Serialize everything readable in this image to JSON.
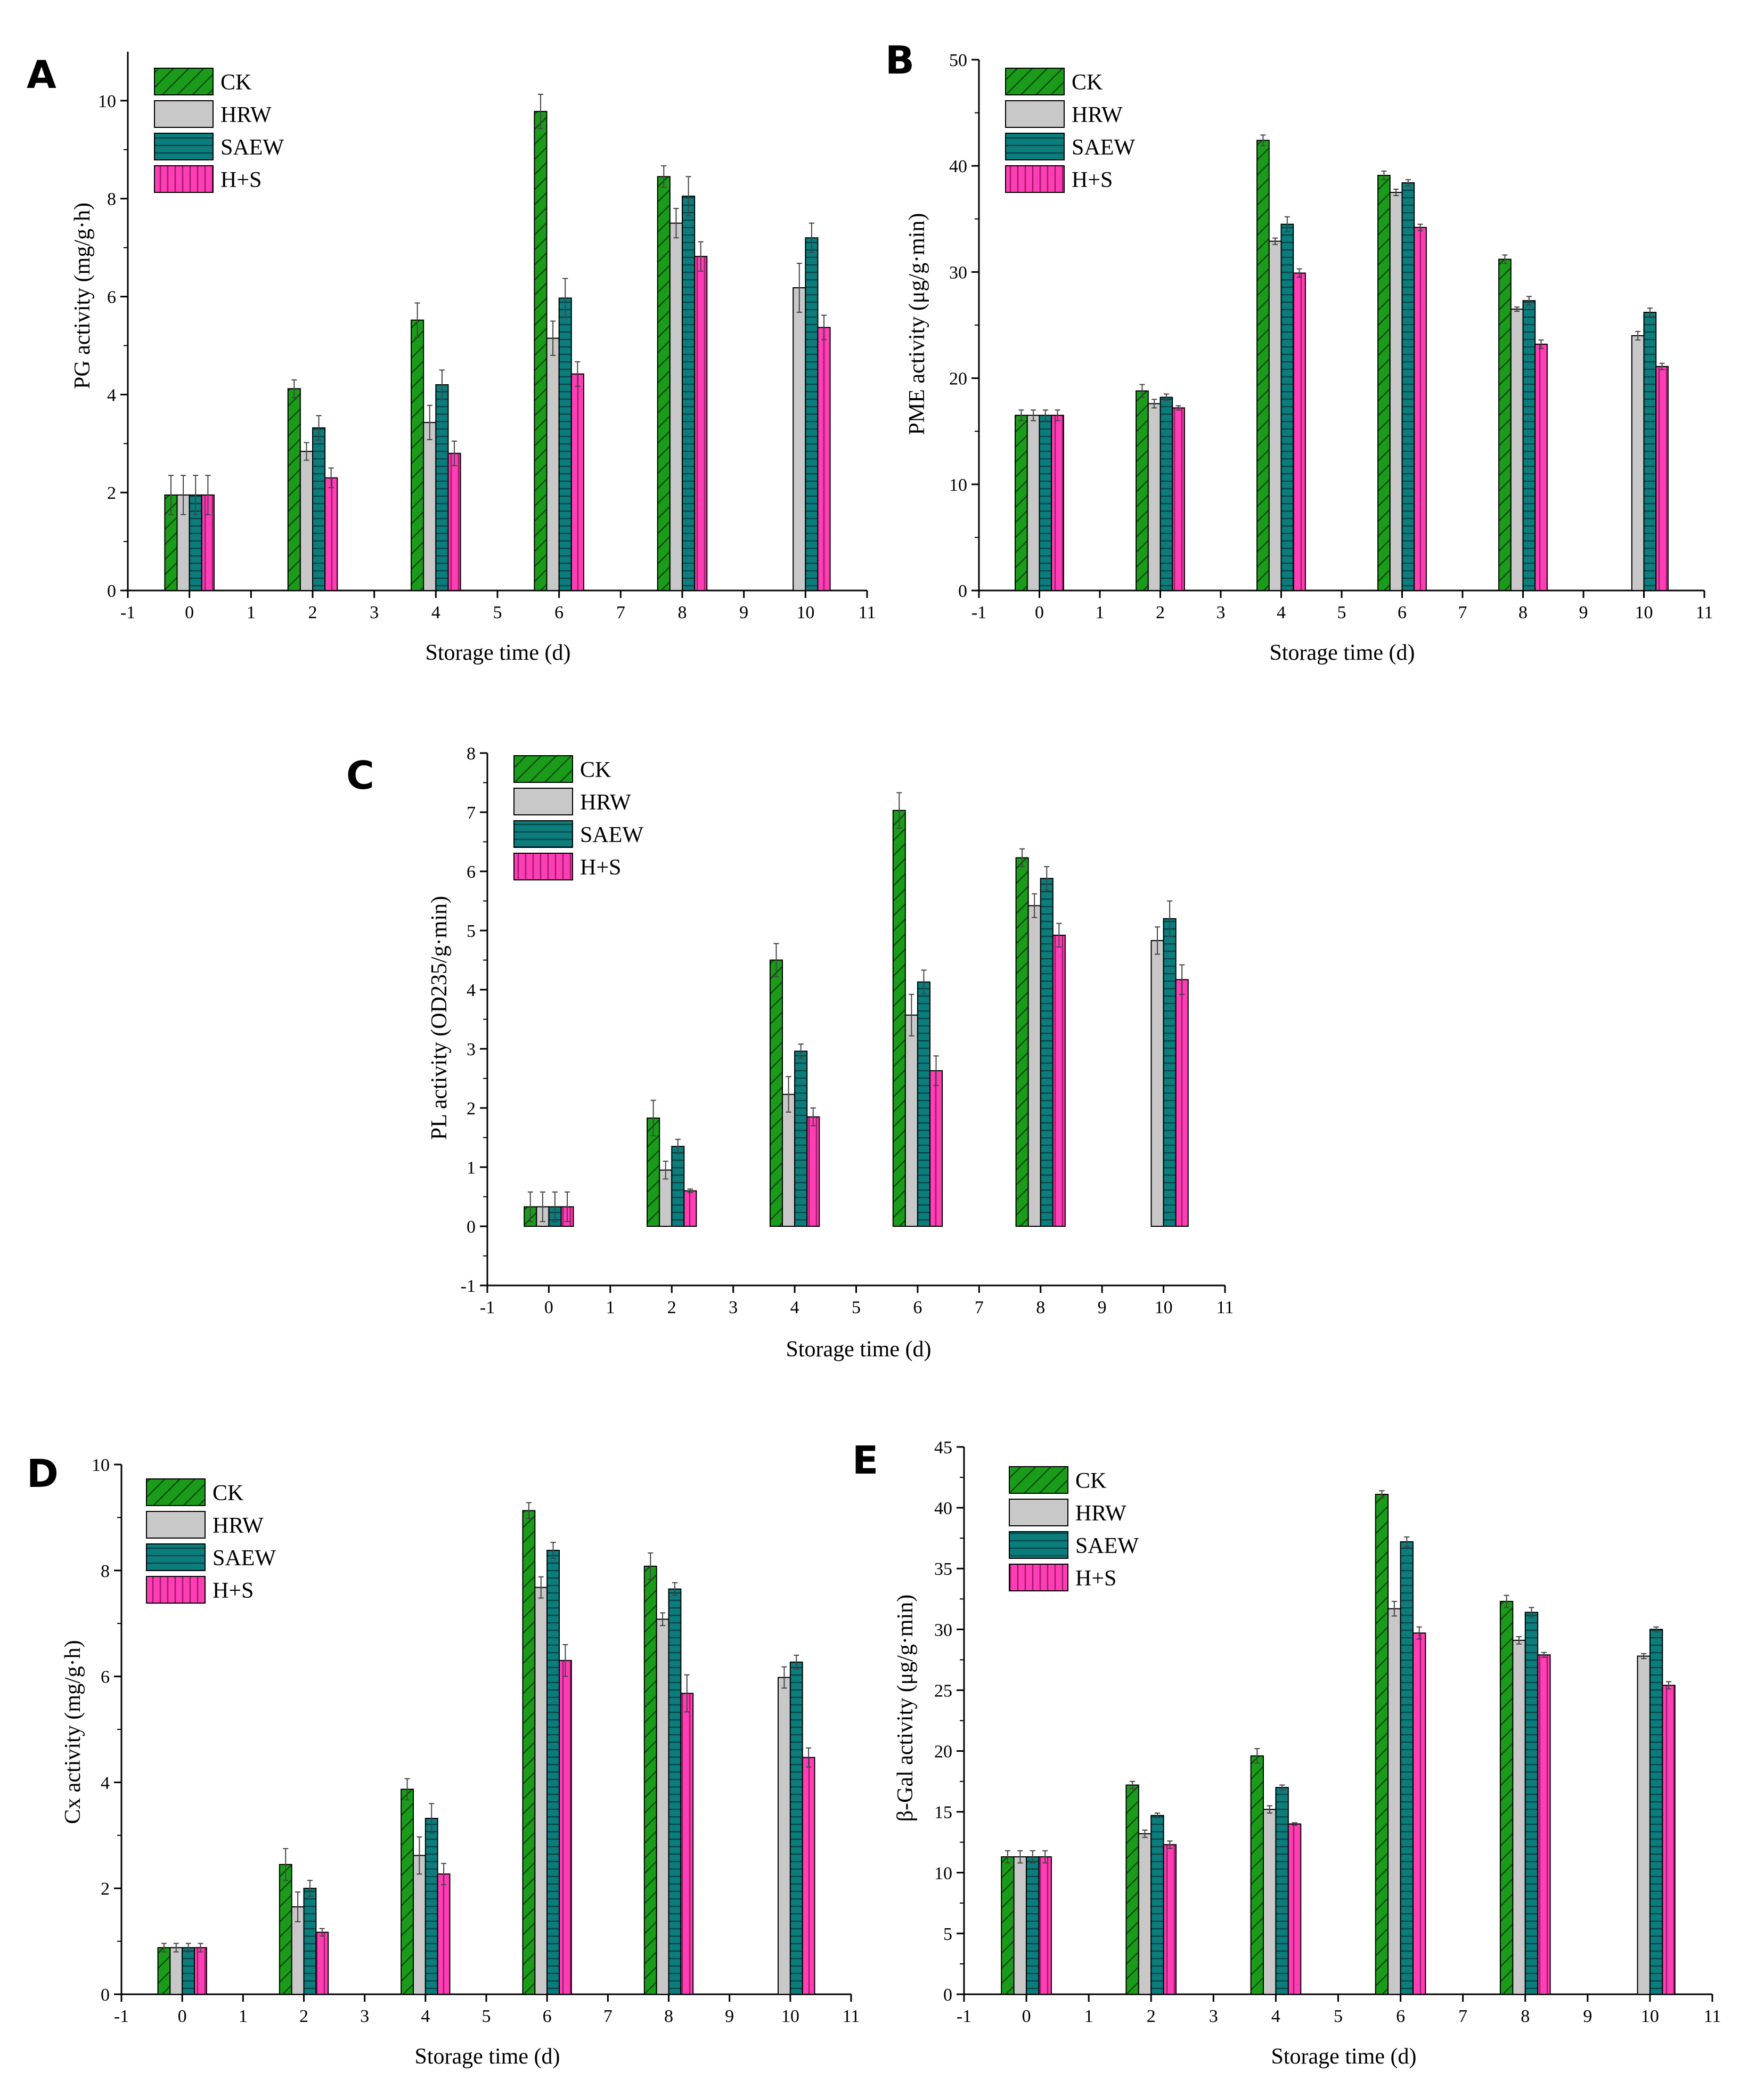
{
  "figure": {
    "colors": {
      "CK": "#1a9c1a",
      "HRW": "#c8c8c8",
      "SAEW": "#0b7d7d",
      "H+S": "#ff3eb5"
    },
    "hatches": {
      "CK": "diagonal",
      "HRW": "none",
      "SAEW": "horizontal",
      "H+S": "vertical"
    }
  },
  "chart_data": [
    {
      "panel": "A",
      "type": "bar",
      "xlabel": "Storage time (d)",
      "ylabel": "PG activity (mg/g·h)",
      "x_positions": [
        0,
        2,
        4,
        6,
        8,
        10
      ],
      "xlim": [
        -1,
        11
      ],
      "xticks": [
        -1,
        0,
        1,
        2,
        3,
        4,
        5,
        6,
        7,
        8,
        9,
        10,
        11
      ],
      "ylim": [
        0,
        11
      ],
      "yticks": [
        0,
        2,
        4,
        6,
        8,
        10
      ],
      "series": [
        {
          "name": "CK",
          "values": [
            1.95,
            4.12,
            5.52,
            9.78,
            8.45,
            null
          ],
          "errors": [
            0.4,
            0.18,
            0.35,
            0.35,
            0.22,
            null
          ]
        },
        {
          "name": "HRW",
          "values": [
            1.95,
            2.84,
            3.43,
            5.15,
            7.5,
            6.18
          ],
          "errors": [
            0.4,
            0.18,
            0.35,
            0.35,
            0.3,
            0.5
          ]
        },
        {
          "name": "SAEW",
          "values": [
            1.95,
            3.32,
            4.2,
            5.97,
            8.05,
            7.2
          ],
          "errors": [
            0.4,
            0.25,
            0.3,
            0.4,
            0.4,
            0.3
          ]
        },
        {
          "name": "H+S",
          "values": [
            1.95,
            2.3,
            2.8,
            4.42,
            6.82,
            5.37
          ],
          "errors": [
            0.4,
            0.2,
            0.25,
            0.25,
            0.3,
            0.25
          ]
        }
      ]
    },
    {
      "panel": "B",
      "type": "bar",
      "xlabel": "Storage time (d)",
      "ylabel": "PME activity (μg/g·min)",
      "x_positions": [
        0,
        2,
        4,
        6,
        8,
        10
      ],
      "xlim": [
        -1,
        11
      ],
      "xticks": [
        -1,
        0,
        1,
        2,
        3,
        4,
        5,
        6,
        7,
        8,
        9,
        10,
        11
      ],
      "ylim": [
        0,
        50
      ],
      "yticks": [
        0,
        10,
        20,
        30,
        40,
        50
      ],
      "series": [
        {
          "name": "CK",
          "values": [
            16.5,
            18.8,
            42.4,
            39.1,
            31.2,
            null
          ],
          "errors": [
            0.5,
            0.6,
            0.5,
            0.4,
            0.4,
            null
          ]
        },
        {
          "name": "HRW",
          "values": [
            16.5,
            17.6,
            32.9,
            37.5,
            26.5,
            24.0
          ],
          "errors": [
            0.5,
            0.4,
            0.3,
            0.3,
            0.2,
            0.4
          ]
        },
        {
          "name": "SAEW",
          "values": [
            16.5,
            18.2,
            34.5,
            38.4,
            27.3,
            26.2
          ],
          "errors": [
            0.5,
            0.3,
            0.7,
            0.3,
            0.4,
            0.4
          ]
        },
        {
          "name": "H+S",
          "values": [
            16.5,
            17.2,
            29.9,
            34.2,
            23.2,
            21.1
          ],
          "errors": [
            0.5,
            0.2,
            0.4,
            0.3,
            0.4,
            0.3
          ]
        }
      ]
    },
    {
      "panel": "C",
      "type": "bar",
      "xlabel": "Storage time (d)",
      "ylabel": "PL activity (OD235/g·min)",
      "x_positions": [
        0,
        2,
        4,
        6,
        8,
        10
      ],
      "xlim": [
        -1,
        11
      ],
      "xticks": [
        -1,
        0,
        1,
        2,
        3,
        4,
        5,
        6,
        7,
        8,
        9,
        10,
        11
      ],
      "ylim": [
        -1,
        8
      ],
      "yticks": [
        -1,
        0,
        1,
        2,
        3,
        4,
        5,
        6,
        7,
        8
      ],
      "series": [
        {
          "name": "CK",
          "values": [
            0.33,
            1.83,
            4.5,
            7.03,
            6.23,
            null
          ],
          "errors": [
            0.25,
            0.3,
            0.28,
            0.3,
            0.15,
            null
          ]
        },
        {
          "name": "HRW",
          "values": [
            0.33,
            0.95,
            2.23,
            3.57,
            5.42,
            4.83
          ],
          "errors": [
            0.25,
            0.15,
            0.3,
            0.35,
            0.2,
            0.23
          ]
        },
        {
          "name": "SAEW",
          "values": [
            0.33,
            1.35,
            2.96,
            4.13,
            5.88,
            5.2
          ],
          "errors": [
            0.25,
            0.12,
            0.12,
            0.2,
            0.2,
            0.3
          ]
        },
        {
          "name": "H+S",
          "values": [
            0.33,
            0.6,
            1.85,
            2.63,
            4.92,
            4.17
          ],
          "errors": [
            0.25,
            0.03,
            0.15,
            0.25,
            0.2,
            0.25
          ]
        }
      ]
    },
    {
      "panel": "D",
      "type": "bar",
      "xlabel": "Storage time (d)",
      "ylabel": "Cx activity (mg/g·h)",
      "x_positions": [
        0,
        2,
        4,
        6,
        8,
        10
      ],
      "xlim": [
        -1,
        11
      ],
      "xticks": [
        -1,
        0,
        1,
        2,
        3,
        4,
        5,
        6,
        7,
        8,
        9,
        10,
        11
      ],
      "ylim": [
        0,
        10
      ],
      "yticks": [
        0,
        2,
        4,
        6,
        8,
        10
      ],
      "series": [
        {
          "name": "CK",
          "values": [
            0.88,
            2.45,
            3.87,
            9.13,
            8.08,
            null
          ],
          "errors": [
            0.08,
            0.3,
            0.2,
            0.15,
            0.25,
            null
          ]
        },
        {
          "name": "HRW",
          "values": [
            0.88,
            1.65,
            2.62,
            7.68,
            7.08,
            5.98
          ],
          "errors": [
            0.08,
            0.28,
            0.35,
            0.2,
            0.12,
            0.2
          ]
        },
        {
          "name": "SAEW",
          "values": [
            0.88,
            2.0,
            3.32,
            8.38,
            7.65,
            6.27
          ],
          "errors": [
            0.08,
            0.15,
            0.28,
            0.15,
            0.12,
            0.13
          ]
        },
        {
          "name": "H+S",
          "values": [
            0.88,
            1.17,
            2.27,
            6.3,
            5.68,
            4.47
          ],
          "errors": [
            0.08,
            0.07,
            0.2,
            0.3,
            0.35,
            0.18
          ]
        }
      ]
    },
    {
      "panel": "E",
      "type": "bar",
      "xlabel": "Storage time (d)",
      "ylabel": "β-Gal activity (μg/g·min)",
      "x_positions": [
        0,
        2,
        4,
        6,
        8,
        10
      ],
      "xlim": [
        -1,
        11
      ],
      "xticks": [
        -1,
        0,
        1,
        2,
        3,
        4,
        5,
        6,
        7,
        8,
        9,
        10,
        11
      ],
      "ylim": [
        0,
        45
      ],
      "yticks": [
        0,
        5,
        10,
        15,
        20,
        25,
        30,
        35,
        40,
        45
      ],
      "series": [
        {
          "name": "CK",
          "values": [
            11.3,
            17.2,
            19.6,
            41.1,
            32.3,
            null
          ],
          "errors": [
            0.5,
            0.3,
            0.6,
            0.3,
            0.5,
            null
          ]
        },
        {
          "name": "HRW",
          "values": [
            11.3,
            13.2,
            15.2,
            31.7,
            29.1,
            27.8
          ],
          "errors": [
            0.5,
            0.3,
            0.3,
            0.6,
            0.3,
            0.2
          ]
        },
        {
          "name": "SAEW",
          "values": [
            11.3,
            14.7,
            17.0,
            37.2,
            31.4,
            30.0
          ],
          "errors": [
            0.5,
            0.2,
            0.2,
            0.4,
            0.4,
            0.2
          ]
        },
        {
          "name": "H+S",
          "values": [
            11.3,
            12.3,
            14.0,
            29.7,
            27.9,
            25.4
          ],
          "errors": [
            0.5,
            0.3,
            0.1,
            0.5,
            0.2,
            0.3
          ]
        }
      ]
    }
  ]
}
